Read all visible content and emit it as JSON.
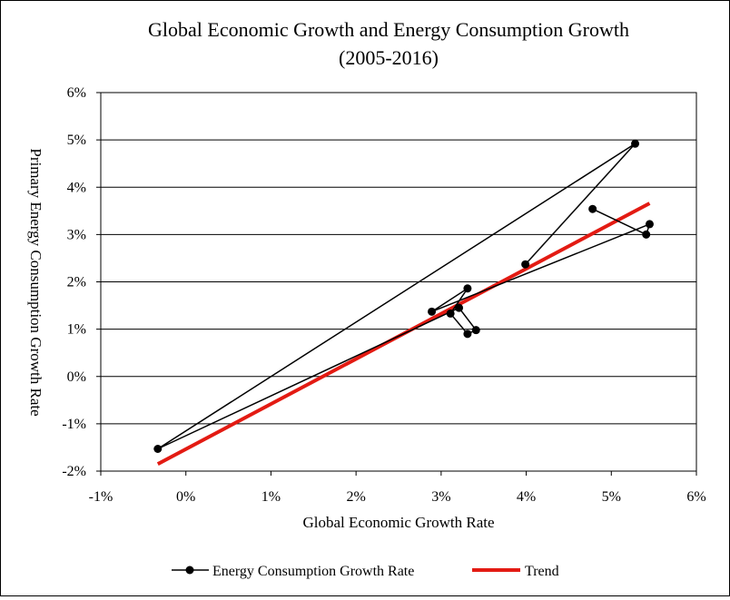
{
  "chart_data": {
    "type": "scatter",
    "title": "Global Economic Growth and Energy Consumption Growth",
    "subtitle": "(2005-2016)",
    "xlabel": "Global Economic Growth Rate",
    "ylabel": "Primary Energy Consumption Growth Rate",
    "xlim": [
      -0.01,
      0.06
    ],
    "ylim": [
      -0.02,
      0.06
    ],
    "x_ticks": [
      -0.01,
      0.0,
      0.01,
      0.02,
      0.03,
      0.04,
      0.05,
      0.06
    ],
    "x_tick_labels": [
      "-1%",
      "0%",
      "1%",
      "2%",
      "3%",
      "4%",
      "5%",
      "6%"
    ],
    "y_ticks": [
      -0.02,
      -0.01,
      0.0,
      0.01,
      0.02,
      0.03,
      0.04,
      0.05,
      0.06
    ],
    "y_tick_labels": [
      "-2%",
      "-1%",
      "0%",
      "1%",
      "2%",
      "3%",
      "4%",
      "5%",
      "6%"
    ],
    "grid": "horizontal",
    "legend_position": "bottom",
    "series": [
      {
        "name": "Energy Consumption Growth Rate",
        "color": "#000000",
        "marker": "circle",
        "x": [
          0.0478,
          0.0541,
          0.0545,
          0.0289,
          0.0331,
          0.0311,
          0.0331,
          0.0341,
          0.0321,
          -0.0033,
          0.0528,
          0.0399
        ],
        "y": [
          0.0354,
          0.03,
          0.0322,
          0.0137,
          0.0186,
          0.0133,
          0.009,
          0.0098,
          0.0145,
          -0.0153,
          0.0492,
          0.0237
        ]
      },
      {
        "name": "Trend",
        "color": "#e31b13",
        "type": "line",
        "x": [
          -0.0033,
          0.0545
        ],
        "y": [
          -0.0185,
          0.0366
        ]
      }
    ]
  }
}
